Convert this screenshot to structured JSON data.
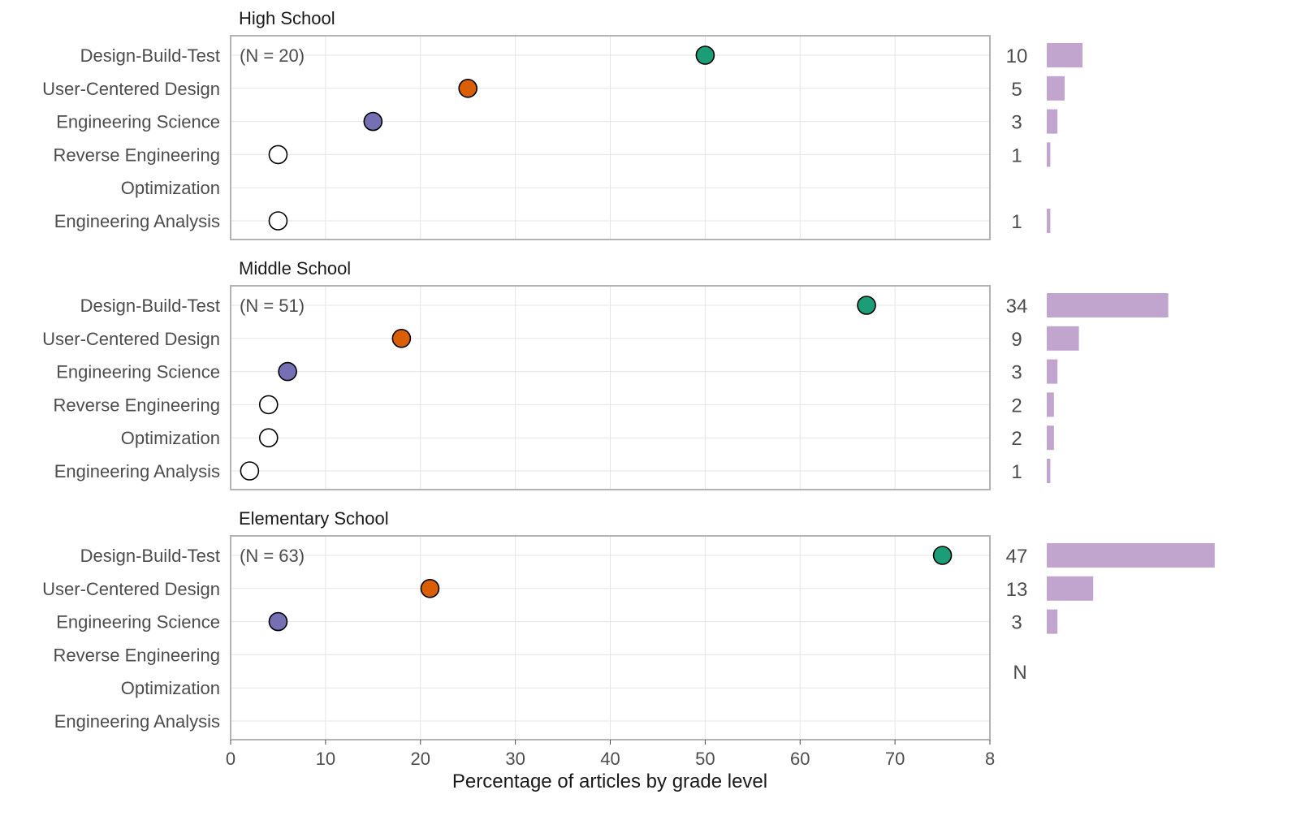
{
  "chart_data": {
    "type": "scatter",
    "xlabel": "Percentage of articles by grade level",
    "x_ticks": [
      "0",
      "10",
      "20",
      "30",
      "40",
      "50",
      "60",
      "70",
      "8"
    ],
    "xlim": [
      0,
      80
    ],
    "grid": true,
    "categories": [
      "Design-Build-Test",
      "User-Centered Design",
      "Engineering Science",
      "Reverse Engineering",
      "Optimization",
      "Engineering Analysis"
    ],
    "count_axis_label": "N",
    "colors": {
      "Design-Build-Test": "#1b9e77",
      "User-Centered Design": "#d95f02",
      "Engineering Science": "#7570b3",
      "other": "#ffffff",
      "count_bar": "#c2a5cf",
      "grid": "#e5e5e5",
      "panel_border": "#b3b3b3"
    },
    "panels": [
      {
        "title": "High School",
        "n_label": "(N = 20)",
        "values": [
          50,
          25,
          15,
          5,
          null,
          5
        ],
        "counts": [
          10,
          5,
          3,
          1,
          null,
          1
        ]
      },
      {
        "title": "Middle School",
        "n_label": "(N = 51)",
        "values": [
          67,
          18,
          6,
          4,
          4,
          2
        ],
        "counts": [
          34,
          9,
          3,
          2,
          2,
          1
        ]
      },
      {
        "title": "Elementary School",
        "n_label": "(N = 63)",
        "values": [
          75,
          21,
          5,
          null,
          null,
          null
        ],
        "counts": [
          47,
          13,
          3,
          null,
          null,
          null
        ]
      }
    ]
  }
}
